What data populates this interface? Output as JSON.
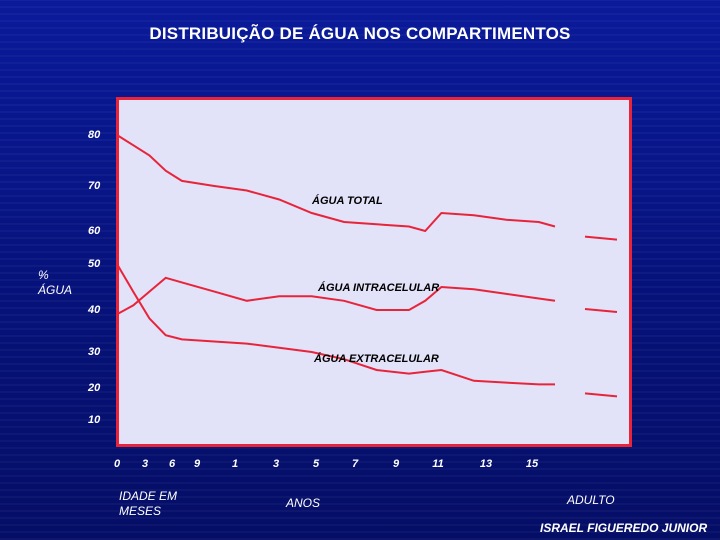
{
  "chart_data": {
    "type": "line",
    "title": "DISTRIBUIÇÃO DE ÁGUA NOS COMPARTIMENTOS",
    "ylabel_line1": "%",
    "ylabel_line2": "ÁGUA",
    "y_ticks": [
      "80",
      "70",
      "60",
      "50",
      "40",
      "30",
      "20",
      "10"
    ],
    "x_ticks": [
      "0",
      "3",
      "6",
      "9",
      "1",
      "3",
      "5",
      "7",
      "9",
      "11",
      "13",
      "15"
    ],
    "x_groups": {
      "months_line1": "IDADE EM",
      "months_line2": "MESES",
      "years": "ANOS",
      "adult": "ADULTO"
    },
    "series": [
      {
        "name": "ÁGUA TOTAL",
        "x": [
          0,
          0.5,
          1,
          1.5,
          2,
          3,
          4,
          5,
          6,
          7,
          8,
          9,
          9.5,
          10,
          11,
          12,
          13,
          13.5
        ],
        "y": [
          80,
          78,
          76,
          73,
          71,
          70,
          69,
          67,
          64,
          62,
          61.5,
          61,
          60,
          64,
          63.5,
          62.5,
          62,
          61
        ],
        "adult_y": 58
      },
      {
        "name": "ÁGUA INTRACELULAR",
        "x": [
          0,
          0.5,
          1,
          1.5,
          2,
          3,
          4,
          5,
          6,
          7,
          8,
          9,
          9.5,
          10,
          11,
          12,
          13,
          13.5
        ],
        "y": [
          39,
          41,
          44,
          47,
          46,
          44,
          42,
          43,
          43,
          42,
          40,
          40,
          42,
          45,
          44.5,
          43.5,
          42.5,
          42
        ],
        "adult_y": 40
      },
      {
        "name": "ÁGUA EXTRACELULAR",
        "x": [
          0,
          0.5,
          1,
          1.5,
          2,
          3,
          4,
          5,
          6,
          7,
          8,
          9,
          9.5,
          10,
          11,
          12,
          13,
          13.5
        ],
        "y": [
          50,
          44,
          38,
          34,
          33,
          32.5,
          32,
          31,
          30,
          28,
          25,
          24,
          24.5,
          25,
          22,
          21.5,
          21,
          21
        ],
        "adult_y": 18
      }
    ],
    "colors": {
      "line": "#e8243a",
      "frame": "#e8243a",
      "plot_bg": "#e2e2f8",
      "background": "#07137e"
    },
    "grid": false,
    "legend": "inline labels"
  },
  "credit": "ISRAEL FIGUEREDO JUNIOR"
}
